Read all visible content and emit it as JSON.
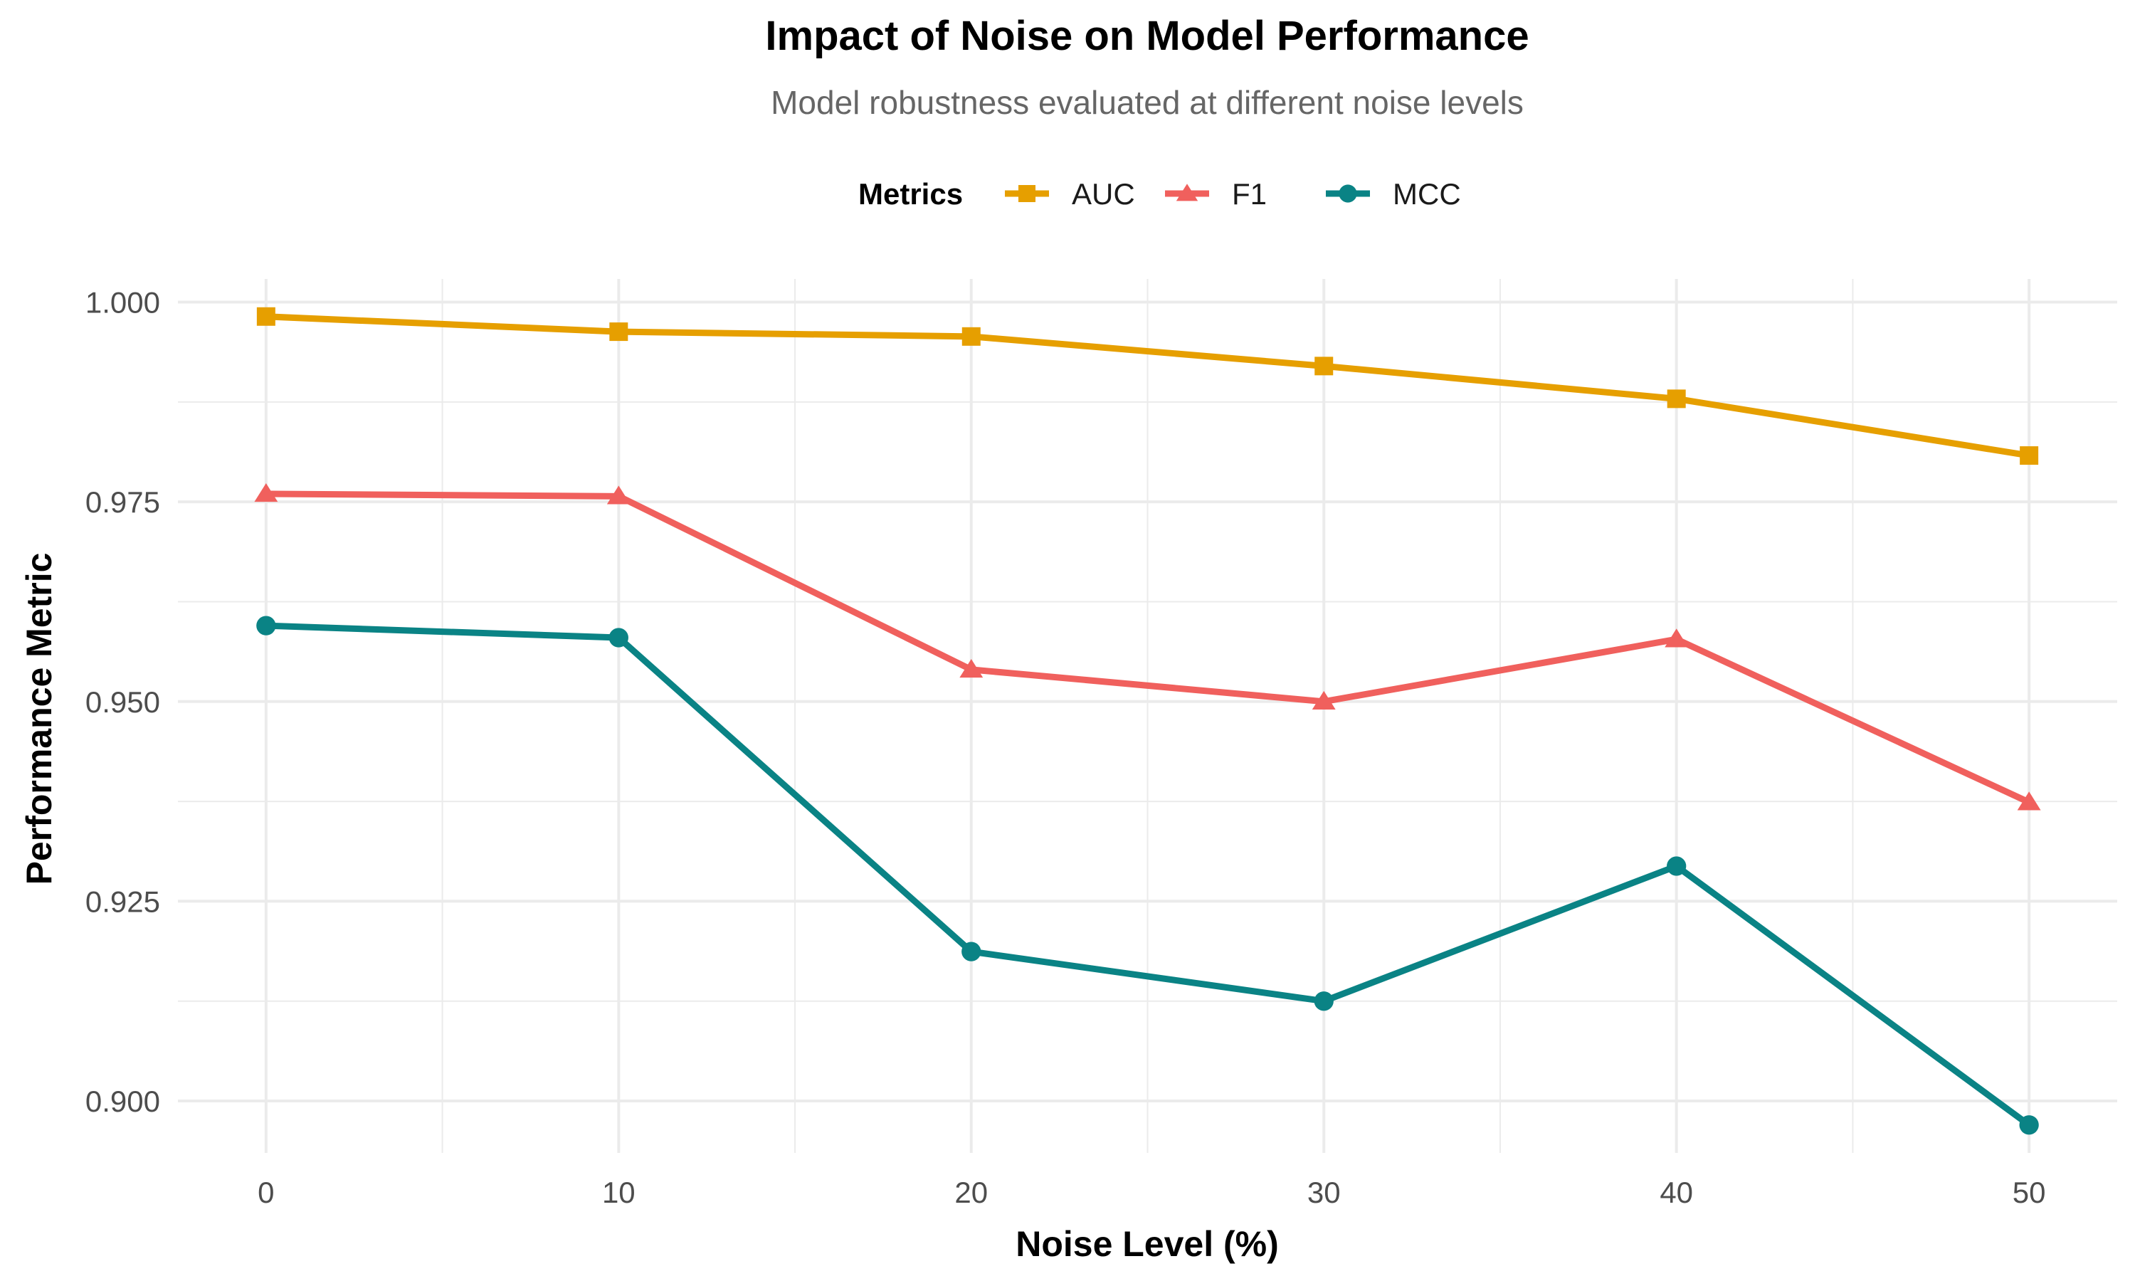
{
  "chart_data": {
    "type": "line",
    "title": "Impact of Noise on Model Performance",
    "subtitle": "Model robustness evaluated at different noise levels",
    "xlabel": "Noise Level (%)",
    "ylabel": "Performance Metric",
    "legend_title": "Metrics",
    "legend_position": "top",
    "grid": true,
    "x": [
      0,
      10,
      20,
      30,
      40,
      50
    ],
    "xticks": [
      0,
      10,
      20,
      30,
      40,
      50
    ],
    "xtick_labels": [
      "0",
      "10",
      "20",
      "30",
      "40",
      "50"
    ],
    "xminor": [
      5,
      15,
      25,
      35,
      45
    ],
    "xlim": [
      -2.5,
      52.5
    ],
    "yticks": [
      0.9,
      0.925,
      0.95,
      0.975,
      1.0
    ],
    "ytick_labels": [
      "0.900",
      "0.925",
      "0.950",
      "0.975",
      "1.000"
    ],
    "yminor": [
      0.9125,
      0.9375,
      0.9625,
      0.9875
    ],
    "ylim": [
      0.8935,
      1.0029
    ],
    "series": [
      {
        "name": "AUC",
        "color": "#E69F00",
        "marker": "square",
        "values": [
          0.9982,
          0.9963,
          0.9957,
          0.992,
          0.9879,
          0.9808
        ]
      },
      {
        "name": "F1",
        "color": "#F0605D",
        "marker": "triangle",
        "values": [
          0.976,
          0.9757,
          0.954,
          0.95,
          0.9578,
          0.9374
        ]
      },
      {
        "name": "MCC",
        "color": "#0A8385",
        "marker": "circle",
        "values": [
          0.9595,
          0.958,
          0.9187,
          0.9125,
          0.9294,
          0.897
        ]
      }
    ]
  }
}
